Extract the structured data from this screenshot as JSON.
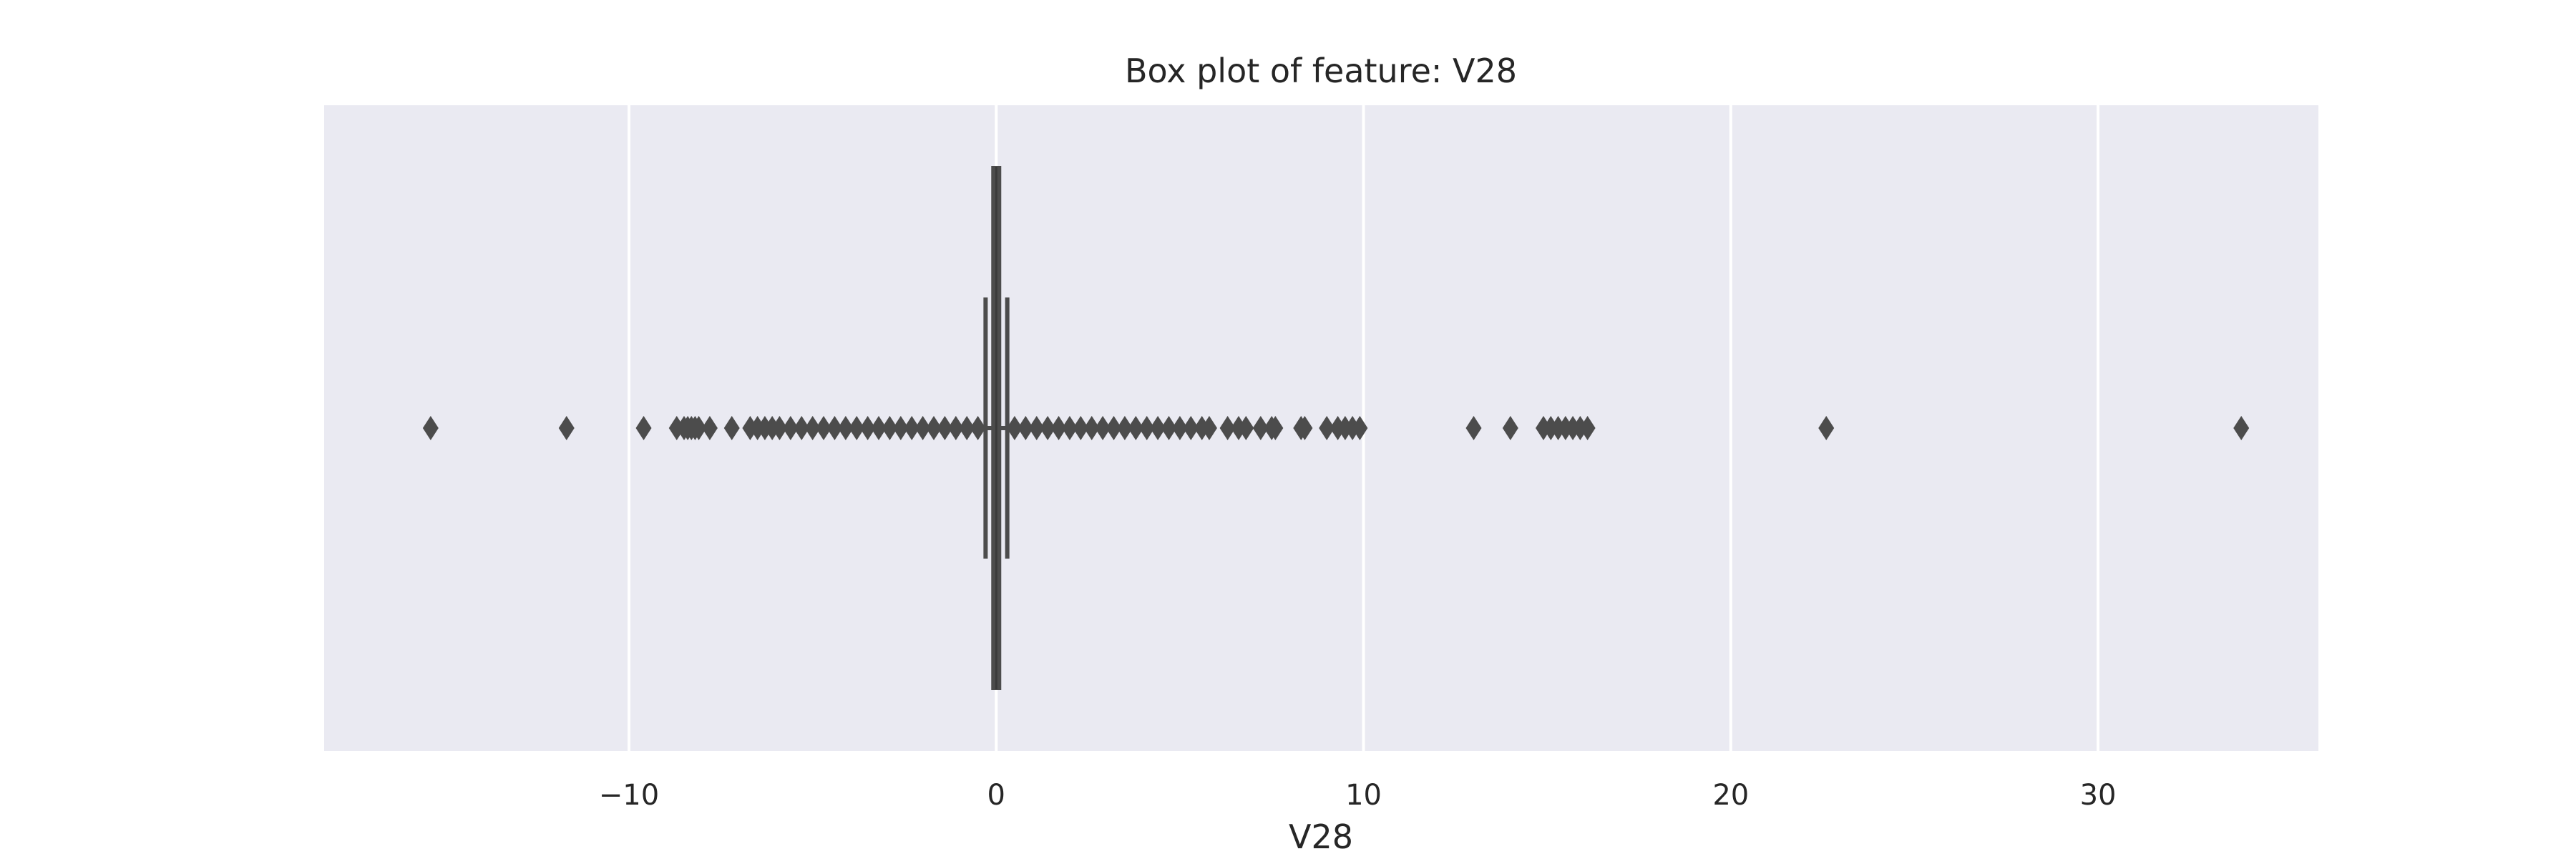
{
  "chart_data": {
    "type": "box",
    "title": "Box plot of feature: V28",
    "xlabel": "V28",
    "ylabel": "",
    "xlim": [
      -18.3,
      36.0
    ],
    "xticks": [
      -10,
      0,
      10,
      20,
      30
    ],
    "xtick_labels": [
      "−10",
      "0",
      "10",
      "20",
      "30"
    ],
    "grid": true,
    "orientation": "horizontal",
    "box": {
      "q1": -0.07,
      "median": 0.0,
      "q3": 0.08,
      "whisker_low": -0.29,
      "whisker_high": 0.3
    },
    "outliers": [
      -15.4,
      -11.7,
      -9.6,
      -8.7,
      -8.5,
      -8.4,
      -8.3,
      -8.2,
      -8.1,
      -7.8,
      -7.2,
      -6.7,
      -6.5,
      -6.3,
      -6.1,
      -5.9,
      -5.6,
      -5.3,
      -5.0,
      -4.7,
      -4.4,
      -4.1,
      -3.8,
      -3.5,
      -3.2,
      -2.9,
      -2.6,
      -2.3,
      -2.0,
      -1.7,
      -1.4,
      -1.1,
      -0.8,
      -0.5,
      0.5,
      0.8,
      1.1,
      1.4,
      1.7,
      2.0,
      2.3,
      2.6,
      2.9,
      3.2,
      3.5,
      3.8,
      4.1,
      4.4,
      4.7,
      5.0,
      5.3,
      5.6,
      5.8,
      6.3,
      6.6,
      6.8,
      7.2,
      7.5,
      7.6,
      8.3,
      8.4,
      9.0,
      9.3,
      9.5,
      9.7,
      9.9,
      13.0,
      14.0,
      14.9,
      15.1,
      15.3,
      15.5,
      15.7,
      15.9,
      16.1,
      22.6,
      33.9
    ],
    "colors": {
      "background": "#eaeaf2",
      "box": "#4c4c4c",
      "grid": "#ffffff"
    }
  }
}
